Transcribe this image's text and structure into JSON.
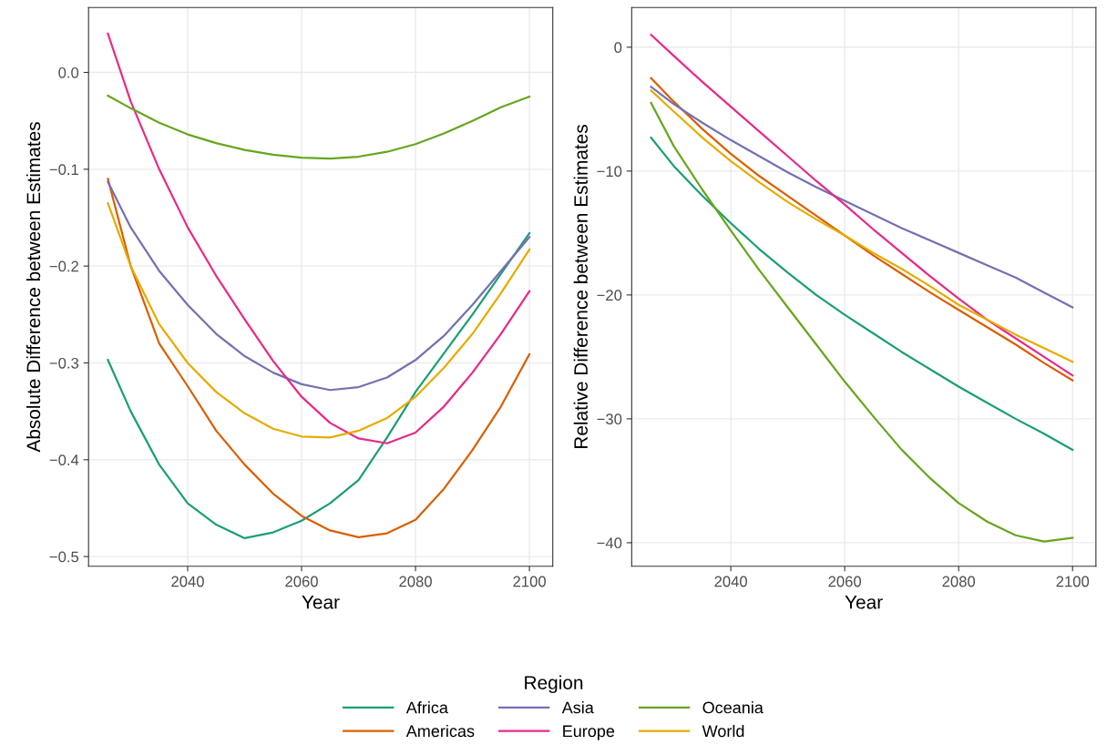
{
  "chart_data": [
    {
      "type": "line",
      "xlabel": "Year",
      "ylabel": "Absolute Difference between Estimates",
      "x": [
        2026,
        2030,
        2035,
        2040,
        2045,
        2050,
        2055,
        2060,
        2065,
        2070,
        2075,
        2080,
        2085,
        2090,
        2095,
        2100
      ],
      "xlim": [
        2022.6,
        2104.1
      ],
      "ylim": [
        -0.51,
        0.067
      ],
      "xticks": [
        2040,
        2060,
        2080,
        2100
      ],
      "yticks": [
        {
          "value": 0,
          "label": "0.0"
        },
        {
          "value": -0.1,
          "label": "−0.1"
        },
        {
          "value": -0.2,
          "label": "−0.2"
        },
        {
          "value": -0.3,
          "label": "−0.3"
        },
        {
          "value": -0.4,
          "label": "−0.4"
        },
        {
          "value": -0.5,
          "label": "−0.5"
        }
      ],
      "grid": true,
      "legend": "bottom",
      "legend_title": "Region",
      "series": [
        {
          "name": "Africa",
          "color": "#1b9e77",
          "values": [
            -0.297,
            -0.35,
            -0.405,
            -0.445,
            -0.467,
            -0.481,
            -0.475,
            -0.463,
            -0.445,
            -0.421,
            -0.377,
            -0.33,
            -0.29,
            -0.25,
            -0.208,
            -0.166
          ]
        },
        {
          "name": "Americas",
          "color": "#d95f02",
          "values": [
            -0.11,
            -0.2,
            -0.28,
            -0.324,
            -0.37,
            -0.405,
            -0.435,
            -0.458,
            -0.473,
            -0.48,
            -0.476,
            -0.462,
            -0.43,
            -0.39,
            -0.345,
            -0.291
          ]
        },
        {
          "name": "Asia",
          "color": "#7570b3",
          "values": [
            -0.113,
            -0.16,
            -0.205,
            -0.24,
            -0.27,
            -0.293,
            -0.31,
            -0.322,
            -0.328,
            -0.325,
            -0.315,
            -0.297,
            -0.272,
            -0.24,
            -0.205,
            -0.17
          ]
        },
        {
          "name": "Europe",
          "color": "#e7298a",
          "values": [
            0.04,
            -0.03,
            -0.1,
            -0.16,
            -0.21,
            -0.255,
            -0.298,
            -0.335,
            -0.362,
            -0.378,
            -0.383,
            -0.372,
            -0.345,
            -0.31,
            -0.27,
            -0.226
          ]
        },
        {
          "name": "Oceania",
          "color": "#66a61e",
          "values": [
            -0.024,
            -0.037,
            -0.052,
            -0.064,
            -0.073,
            -0.08,
            -0.085,
            -0.088,
            -0.089,
            -0.087,
            -0.082,
            -0.074,
            -0.063,
            -0.05,
            -0.036,
            -0.025
          ]
        },
        {
          "name": "World",
          "color": "#e6ab02",
          "values": [
            -0.135,
            -0.2,
            -0.26,
            -0.3,
            -0.33,
            -0.352,
            -0.368,
            -0.376,
            -0.377,
            -0.37,
            -0.357,
            -0.335,
            -0.305,
            -0.27,
            -0.228,
            -0.183
          ]
        }
      ]
    },
    {
      "type": "line",
      "xlabel": "Year",
      "ylabel": "Relative Difference between Estimates",
      "x": [
        2026,
        2030,
        2035,
        2040,
        2045,
        2050,
        2055,
        2060,
        2065,
        2070,
        2075,
        2080,
        2085,
        2090,
        2095,
        2100
      ],
      "xlim": [
        2022.6,
        2104.1
      ],
      "ylim": [
        -41.9,
        3.2
      ],
      "xticks": [
        2040,
        2060,
        2080,
        2100
      ],
      "yticks": [
        {
          "value": 0,
          "label": "0"
        },
        {
          "value": -10,
          "label": "−10"
        },
        {
          "value": -20,
          "label": "−20"
        },
        {
          "value": -30,
          "label": "−30"
        },
        {
          "value": -40,
          "label": "−40"
        }
      ],
      "grid": true,
      "series": [
        {
          "color": "#1b9e77",
          "values": [
            -7.3,
            -9.6,
            -12.0,
            -14.2,
            -16.3,
            -18.2,
            -20.0,
            -21.6,
            -23.1,
            -24.6,
            -26.0,
            -27.4,
            -28.7,
            -30.0,
            -31.2,
            -32.5
          ]
        },
        {
          "color": "#d95f02",
          "values": [
            -2.5,
            -4.4,
            -6.6,
            -8.6,
            -10.4,
            -12.0,
            -13.6,
            -15.2,
            -16.8,
            -18.3,
            -19.8,
            -21.2,
            -22.6,
            -24.0,
            -25.5,
            -26.9
          ]
        },
        {
          "color": "#7570b3",
          "values": [
            -3.2,
            -4.6,
            -6.1,
            -7.5,
            -8.8,
            -10.1,
            -11.3,
            -12.4,
            -13.5,
            -14.6,
            -15.6,
            -16.6,
            -17.6,
            -18.6,
            -19.8,
            -21.0
          ]
        },
        {
          "color": "#e7298a",
          "values": [
            1.0,
            -0.7,
            -2.8,
            -4.8,
            -6.8,
            -8.8,
            -10.8,
            -12.7,
            -14.7,
            -16.6,
            -18.5,
            -20.3,
            -22.0,
            -23.5,
            -25.0,
            -26.5
          ]
        },
        {
          "color": "#66a61e",
          "values": [
            -4.5,
            -8.0,
            -11.5,
            -14.8,
            -18.0,
            -21.0,
            -24.0,
            -27.0,
            -29.8,
            -32.5,
            -34.8,
            -36.8,
            -38.3,
            -39.4,
            -39.9,
            -39.6
          ]
        },
        {
          "color": "#e6ab02",
          "values": [
            -3.5,
            -5.2,
            -7.3,
            -9.2,
            -10.9,
            -12.5,
            -13.9,
            -15.2,
            -16.6,
            -17.9,
            -19.3,
            -20.8,
            -22.0,
            -23.2,
            -24.3,
            -25.4
          ]
        }
      ]
    }
  ]
}
